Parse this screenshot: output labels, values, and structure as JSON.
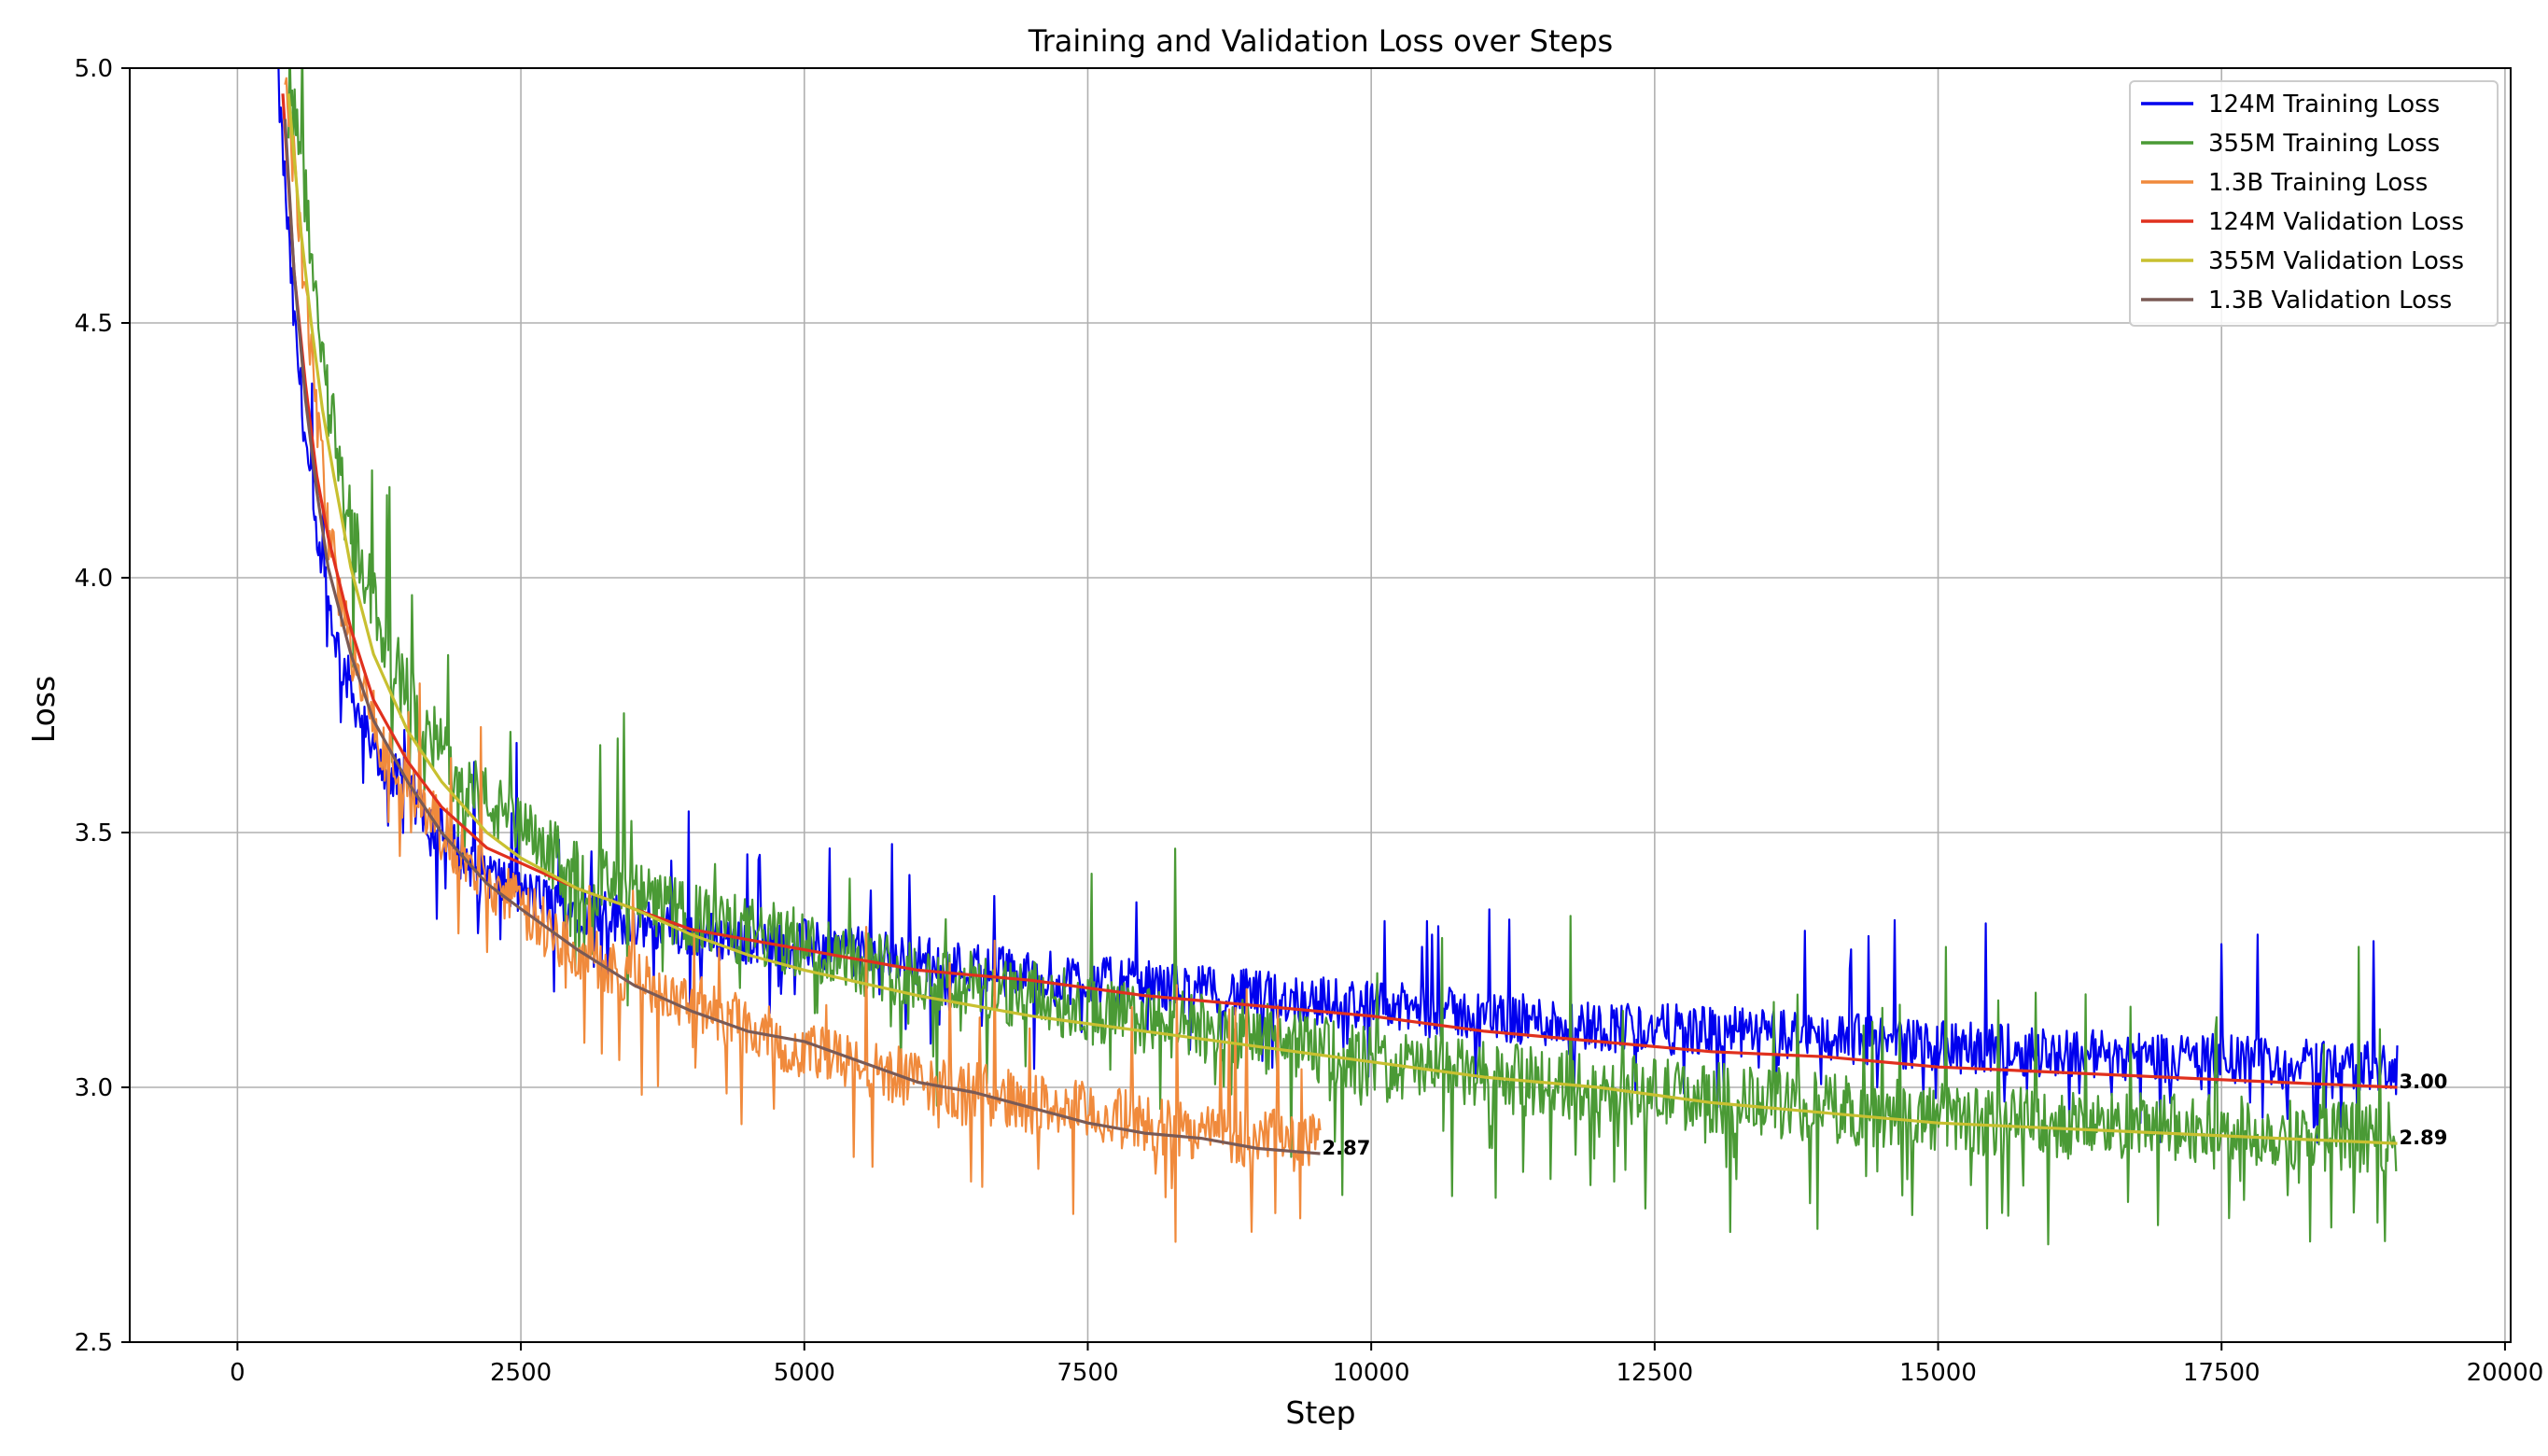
{
  "chart_data": {
    "type": "line",
    "title": "Training and Validation Loss over Steps",
    "xlabel": "Step",
    "ylabel": "Loss",
    "xlim": [
      -950,
      20050
    ],
    "ylim": [
      2.5,
      5.0
    ],
    "xticks": [
      0,
      2500,
      5000,
      7500,
      10000,
      12500,
      15000,
      17500,
      20000
    ],
    "xtick_labels": [
      "0",
      "2500",
      "5000",
      "7500",
      "10000",
      "12500",
      "15000",
      "17500",
      "20000"
    ],
    "yticks": [
      2.5,
      3.0,
      3.5,
      4.0,
      4.5,
      5.0
    ],
    "ytick_labels": [
      "2.5",
      "3.0",
      "3.5",
      "4.0",
      "4.5",
      "5.0"
    ],
    "grid": true,
    "legend_position": "top-right",
    "series": [
      {
        "name": "124M Training Loss",
        "color": "#0000ee",
        "kind": "training",
        "x": [
          350,
          500,
          700,
          900,
          1200,
          1500,
          2000,
          2500,
          3000,
          4000,
          5000,
          6000,
          7000,
          8000,
          9000,
          10000,
          11000,
          12000,
          13000,
          14000,
          15000,
          16000,
          17000,
          18000,
          19050
        ],
        "y": [
          5.0,
          4.5,
          4.05,
          3.85,
          3.65,
          3.58,
          3.45,
          3.38,
          3.35,
          3.3,
          3.28,
          3.25,
          3.22,
          3.2,
          3.18,
          3.16,
          3.14,
          3.12,
          3.11,
          3.1,
          3.08,
          3.07,
          3.06,
          3.05,
          3.04
        ],
        "noise": 0.05
      },
      {
        "name": "355M Training Loss",
        "color": "#4a9a35",
        "kind": "training",
        "x": [
          450,
          600,
          800,
          1000,
          1300,
          1600,
          2000,
          2500,
          3000,
          4000,
          5000,
          6000,
          7000,
          8000,
          9000,
          10000,
          11000,
          12000,
          13000,
          14000,
          15000,
          16000,
          17000,
          18000,
          19050
        ],
        "y": [
          5.0,
          4.75,
          4.35,
          4.1,
          3.88,
          3.72,
          3.6,
          3.5,
          3.42,
          3.33,
          3.28,
          3.22,
          3.18,
          3.13,
          3.1,
          3.05,
          3.02,
          3.0,
          2.98,
          2.96,
          2.94,
          2.93,
          2.92,
          2.91,
          2.9
        ],
        "noise": 0.07
      },
      {
        "name": "1.3B Training Loss",
        "color": "#f08a3c",
        "kind": "training",
        "x": [
          420,
          600,
          800,
          1000,
          1300,
          1600,
          2000,
          2500,
          3000,
          4000,
          5000,
          6000,
          7000,
          8000,
          9000,
          9550
        ],
        "y": [
          5.0,
          4.55,
          4.1,
          3.85,
          3.66,
          3.56,
          3.45,
          3.35,
          3.27,
          3.17,
          3.07,
          3.01,
          2.97,
          2.93,
          2.9,
          2.89
        ],
        "noise": 0.06
      },
      {
        "name": "124M Validation Loss",
        "color": "#e0301e",
        "kind": "validation",
        "x": [
          400,
          500,
          600,
          700,
          800,
          1000,
          1200,
          1500,
          1800,
          2200,
          2500,
          3000,
          3500,
          4000,
          4500,
          5000,
          6000,
          7000,
          8000,
          9000,
          10000,
          11000,
          12000,
          13000,
          14000,
          15000,
          16000,
          17000,
          18000,
          19050
        ],
        "y": [
          4.95,
          4.6,
          4.38,
          4.2,
          4.08,
          3.9,
          3.76,
          3.64,
          3.55,
          3.47,
          3.44,
          3.39,
          3.35,
          3.31,
          3.29,
          3.27,
          3.23,
          3.21,
          3.18,
          3.16,
          3.14,
          3.11,
          3.09,
          3.07,
          3.06,
          3.04,
          3.03,
          3.02,
          3.01,
          3.0
        ]
      },
      {
        "name": "355M Validation Loss",
        "color": "#c8c030",
        "kind": "validation",
        "x": [
          450,
          550,
          650,
          750,
          850,
          1000,
          1200,
          1500,
          1800,
          2200,
          2500,
          3000,
          3500,
          4000,
          4500,
          5000,
          6000,
          7000,
          8000,
          9000,
          10000,
          11000,
          12000,
          13000,
          14000,
          15000,
          16000,
          17000,
          18000,
          19050
        ],
        "y": [
          4.95,
          4.7,
          4.5,
          4.33,
          4.2,
          4.02,
          3.85,
          3.7,
          3.6,
          3.5,
          3.45,
          3.39,
          3.35,
          3.3,
          3.26,
          3.23,
          3.18,
          3.14,
          3.11,
          3.08,
          3.05,
          3.02,
          3.0,
          2.97,
          2.95,
          2.93,
          2.92,
          2.91,
          2.9,
          2.89
        ]
      },
      {
        "name": "1.3B Validation Loss",
        "color": "#7a5a55",
        "kind": "validation",
        "x": [
          420,
          500,
          600,
          700,
          800,
          1000,
          1200,
          1500,
          1800,
          2200,
          2500,
          3000,
          3500,
          4000,
          4500,
          5000,
          5500,
          6000,
          6500,
          7000,
          7500,
          8000,
          8500,
          9000,
          9550
        ],
        "y": [
          4.9,
          4.6,
          4.35,
          4.17,
          4.02,
          3.85,
          3.72,
          3.6,
          3.5,
          3.4,
          3.35,
          3.27,
          3.2,
          3.15,
          3.11,
          3.09,
          3.05,
          3.01,
          2.99,
          2.96,
          2.93,
          2.91,
          2.9,
          2.88,
          2.87
        ]
      }
    ],
    "annotations": [
      {
        "text": "3.00",
        "x": 19050,
        "y": 3.0
      },
      {
        "text": "2.89",
        "x": 19050,
        "y": 2.89
      },
      {
        "text": "2.87",
        "x": 9550,
        "y": 2.87
      }
    ]
  }
}
